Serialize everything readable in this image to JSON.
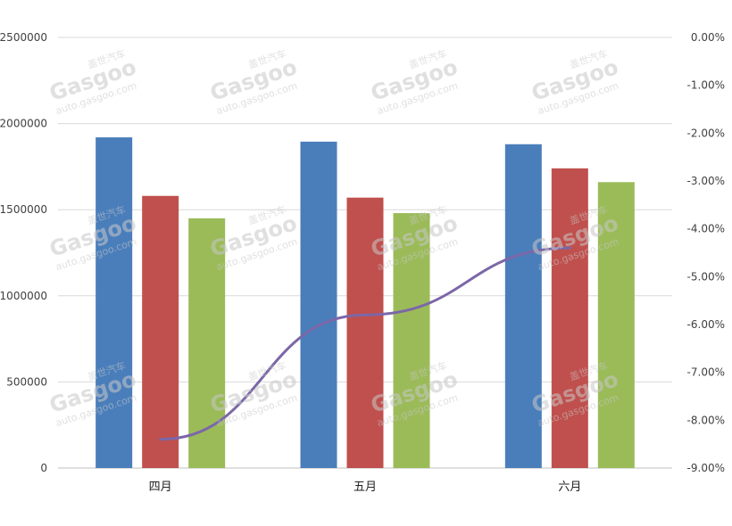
{
  "chart_data": {
    "type": "bar",
    "categories": [
      "四月",
      "五月",
      "六月"
    ],
    "series": [
      {
        "values": [
          1920000,
          1895000,
          1880000
        ],
        "color": "#4a7ebb"
      },
      {
        "values": [
          1580000,
          1570000,
          1740000
        ],
        "color": "#c0504d"
      },
      {
        "values": [
          1450000,
          1480000,
          1660000
        ],
        "color": "#9bbb59"
      },
      {
        "values": [
          -8.4,
          -5.8,
          -4.4
        ],
        "color": "#7b67a8",
        "type": "line",
        "axis": "right"
      }
    ],
    "left_axis": {
      "ylim": [
        0,
        2500000
      ],
      "ticks": [
        0,
        500000,
        1000000,
        1500000,
        2000000,
        2500000
      ],
      "tick_labels": [
        "0",
        "500000",
        "1000000",
        "1500000",
        "2000000",
        "2500000"
      ]
    },
    "right_axis": {
      "ylim": [
        -9,
        0
      ],
      "ticks": [
        0,
        -1,
        -2,
        -3,
        -4,
        -5,
        -6,
        -7,
        -8,
        -9
      ],
      "tick_labels": [
        "0.00%",
        "-1.00%",
        "-2.00%",
        "-3.00%",
        "-4.00%",
        "-5.00%",
        "-6.00%",
        "-7.00%",
        "-8.00%",
        "-9.00%"
      ]
    },
    "grid": true,
    "legend": "none",
    "watermark": {
      "brand": "Gasgoo",
      "cn": "盖世汽车",
      "url": "auto.gasgoo.com"
    }
  }
}
